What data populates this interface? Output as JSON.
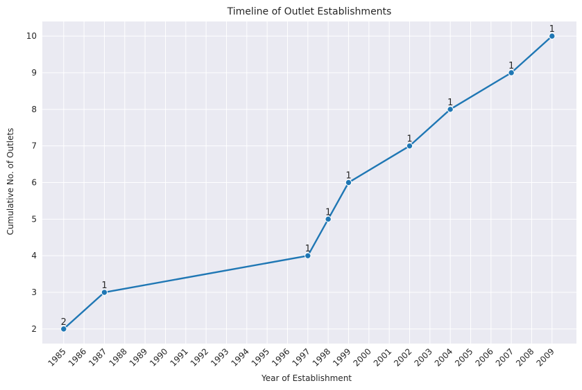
{
  "chart_data": {
    "type": "line",
    "title": "Timeline of Outlet Establishments",
    "xlabel": "Year of Establishment",
    "ylabel": "Cumulative No. of Outlets",
    "categories": [
      "1985",
      "1986",
      "1987",
      "1988",
      "1989",
      "1990",
      "1991",
      "1992",
      "1993",
      "1994",
      "1995",
      "1996",
      "1997",
      "1998",
      "1999",
      "2000",
      "2001",
      "2002",
      "2003",
      "2004",
      "2005",
      "2006",
      "2007",
      "2008",
      "2009"
    ],
    "series": [
      {
        "x": [
          1985,
          1987,
          1997,
          1998,
          1999,
          2002,
          2004,
          2007,
          2009
        ],
        "values": [
          2,
          3,
          4,
          5,
          6,
          7,
          8,
          9,
          10
        ],
        "labels": [
          "2",
          "1",
          "1",
          "1",
          "1",
          "1",
          "1",
          "1",
          "1"
        ]
      }
    ],
    "xlim": [
      1983.95,
      2010.2
    ],
    "ylim": [
      1.6,
      10.4
    ],
    "yticks": [
      2,
      3,
      4,
      5,
      6,
      7,
      8,
      9,
      10
    ],
    "grid": true,
    "line_color": "#1f77b4",
    "background_color": "#eaeaf2",
    "grid_color": "#ffffff"
  }
}
